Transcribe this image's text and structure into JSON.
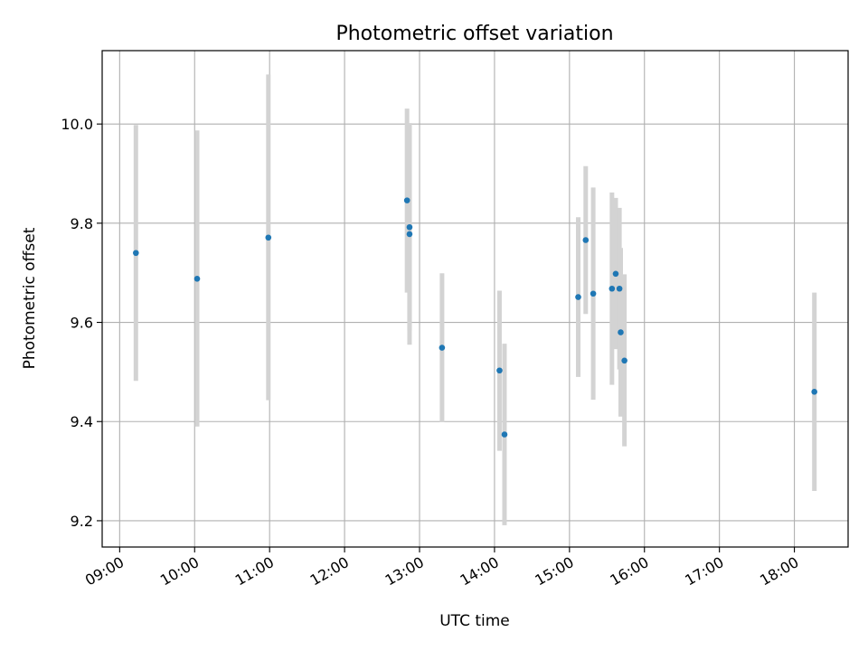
{
  "chart_data": {
    "type": "scatter",
    "title": "Photometric offset variation",
    "xlabel": "UTC time",
    "ylabel": "Photometric offset",
    "x_axis_type": "time",
    "xlim": [
      "08:46",
      "18:43"
    ],
    "ylim": [
      9.147,
      10.148
    ],
    "x_ticks": [
      "09:00",
      "10:00",
      "11:00",
      "12:00",
      "13:00",
      "14:00",
      "15:00",
      "16:00",
      "17:00",
      "18:00"
    ],
    "y_ticks": [
      9.2,
      9.4,
      9.6,
      9.8,
      10.0
    ],
    "y_tick_labels": [
      "9.2",
      "9.4",
      "9.6",
      "9.8",
      "10.0"
    ],
    "grid": true,
    "marker_color": "#1f77b4",
    "errorbar_color": "#d3d3d3",
    "points": [
      {
        "x": "09:13",
        "y": 9.74,
        "ylow": 9.482,
        "yhigh": 9.998
      },
      {
        "x": "10:02",
        "y": 9.688,
        "ylow": 9.39,
        "yhigh": 9.987
      },
      {
        "x": "10:59",
        "y": 9.771,
        "ylow": 9.443,
        "yhigh": 10.1
      },
      {
        "x": "12:50",
        "y": 9.846,
        "ylow": 9.66,
        "yhigh": 10.031
      },
      {
        "x": "12:52",
        "y": 9.792,
        "ylow": 9.584,
        "yhigh": 10.0
      },
      {
        "x": "12:52",
        "y": 9.778,
        "ylow": 9.555,
        "yhigh": 10.002
      },
      {
        "x": "13:18",
        "y": 9.549,
        "ylow": 9.399,
        "yhigh": 9.699
      },
      {
        "x": "14:04",
        "y": 9.503,
        "ylow": 9.341,
        "yhigh": 9.664
      },
      {
        "x": "14:08",
        "y": 9.374,
        "ylow": 9.191,
        "yhigh": 9.557
      },
      {
        "x": "15:07",
        "y": 9.651,
        "ylow": 9.49,
        "yhigh": 9.812
      },
      {
        "x": "15:13",
        "y": 9.766,
        "ylow": 9.617,
        "yhigh": 9.915
      },
      {
        "x": "15:19",
        "y": 9.658,
        "ylow": 9.444,
        "yhigh": 9.872
      },
      {
        "x": "15:34",
        "y": 9.668,
        "ylow": 9.474,
        "yhigh": 9.862
      },
      {
        "x": "15:37",
        "y": 9.698,
        "ylow": 9.546,
        "yhigh": 9.851
      },
      {
        "x": "15:40",
        "y": 9.668,
        "ylow": 9.505,
        "yhigh": 9.831
      },
      {
        "x": "15:41",
        "y": 9.58,
        "ylow": 9.41,
        "yhigh": 9.75
      },
      {
        "x": "15:44",
        "y": 9.523,
        "ylow": 9.35,
        "yhigh": 9.697
      },
      {
        "x": "18:16",
        "y": 9.46,
        "ylow": 9.26,
        "yhigh": 9.66
      }
    ]
  }
}
